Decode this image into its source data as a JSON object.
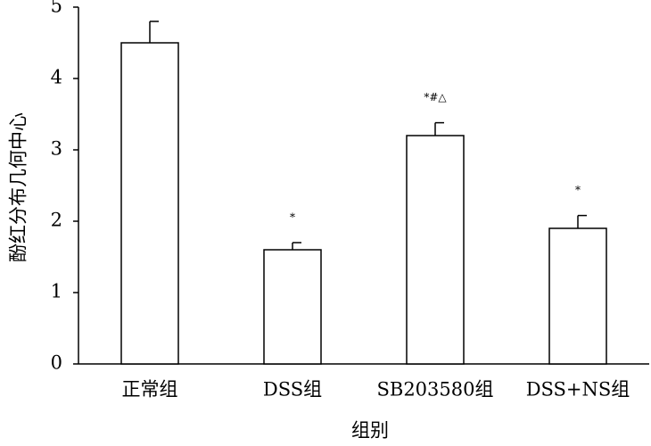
{
  "chart_data": {
    "type": "bar",
    "x_label": "组别",
    "y_label": "酚红分布几何中心",
    "categories": [
      "正常组",
      "DSS组",
      "SB203580组",
      "DSS+NS组"
    ],
    "values": [
      4.5,
      1.6,
      3.2,
      1.9
    ],
    "errors": [
      0.3,
      0.1,
      0.18,
      0.18
    ],
    "annotations": [
      null,
      "*",
      "*#△",
      "*"
    ],
    "color": "#ffffff",
    "ylim": [
      0,
      5
    ],
    "yticks": [
      0,
      1,
      2,
      3,
      4,
      5
    ],
    "grid": false
  }
}
